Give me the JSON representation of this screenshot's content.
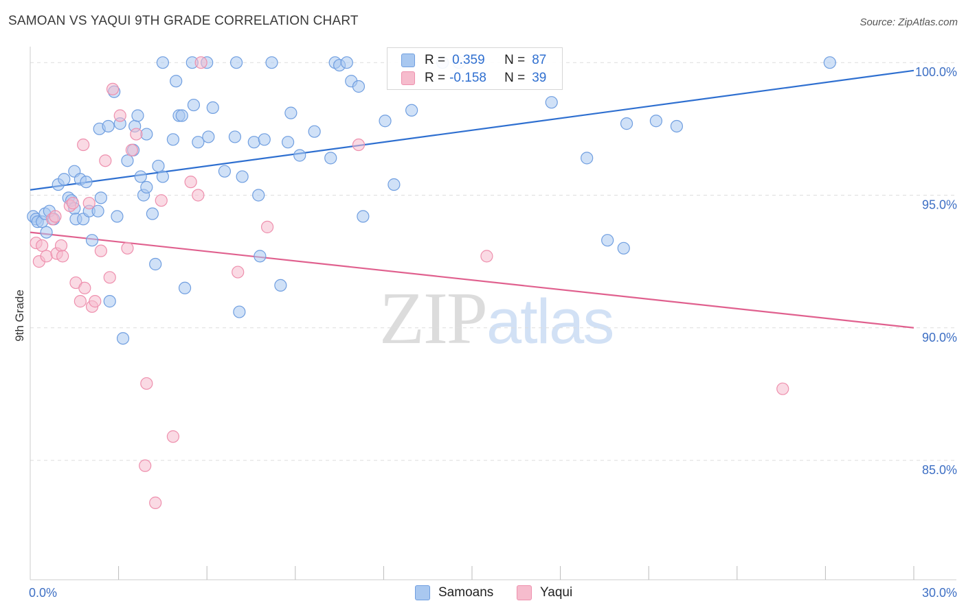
{
  "title": "SAMOAN VS YAQUI 9TH GRADE CORRELATION CHART",
  "source": "Source: ZipAtlas.com",
  "watermark": {
    "zip": "ZIP",
    "atlas": "atlas"
  },
  "colors": {
    "samoans_fill": "#a9c8f0",
    "samoans_stroke": "#6f9ee0",
    "samoans_line": "#2e6fd0",
    "yaqui_fill": "#f6bccd",
    "yaqui_stroke": "#ee8fad",
    "yaqui_line": "#e0608e",
    "tick_label": "#3d6fc4",
    "grid": "#dddddd"
  },
  "stats": {
    "samoans": {
      "r_label": "R =",
      "r_value": "0.359",
      "n_label": "N =",
      "n_value": "87"
    },
    "yaqui": {
      "r_label": "R =",
      "r_value": "-0.158",
      "n_label": "N =",
      "n_value": "39"
    }
  },
  "legend": {
    "samoans": "Samoans",
    "yaqui": "Yaqui"
  },
  "chart_data": {
    "type": "scatter",
    "title": "SAMOAN VS YAQUI 9TH GRADE CORRELATION CHART",
    "xlabel": "",
    "ylabel": "9th Grade",
    "xlim": [
      0,
      30
    ],
    "ylim": [
      80.5,
      100.6
    ],
    "x_tick_labels": [
      {
        "value": 0,
        "label": "0.0%"
      },
      {
        "value": 30,
        "label": "30.0%"
      }
    ],
    "x_minor_ticks": [
      3,
      6,
      9,
      12,
      15,
      18,
      21,
      24,
      27,
      30
    ],
    "y_ticks": [
      {
        "value": 100,
        "label": "100.0%"
      },
      {
        "value": 95,
        "label": "95.0%"
      },
      {
        "value": 90,
        "label": "90.0%"
      },
      {
        "value": 85,
        "label": "85.0%"
      }
    ],
    "series": [
      {
        "name": "Samoans",
        "trend": {
          "x": [
            0,
            30
          ],
          "y": [
            95.2,
            99.7
          ]
        },
        "points": [
          [
            0.1,
            94.2
          ],
          [
            0.2,
            94.1
          ],
          [
            0.25,
            94.0
          ],
          [
            0.4,
            94.0
          ],
          [
            0.5,
            94.3
          ],
          [
            0.55,
            93.6
          ],
          [
            0.65,
            94.4
          ],
          [
            0.8,
            94.1
          ],
          [
            0.95,
            95.4
          ],
          [
            1.15,
            95.6
          ],
          [
            1.3,
            94.9
          ],
          [
            1.4,
            94.8
          ],
          [
            1.5,
            94.5
          ],
          [
            1.5,
            95.9
          ],
          [
            1.55,
            94.1
          ],
          [
            1.7,
            95.6
          ],
          [
            1.8,
            94.1
          ],
          [
            1.9,
            95.5
          ],
          [
            2.0,
            94.4
          ],
          [
            2.1,
            93.3
          ],
          [
            2.3,
            94.4
          ],
          [
            2.4,
            94.9
          ],
          [
            2.35,
            97.5
          ],
          [
            2.65,
            97.6
          ],
          [
            2.7,
            91.0
          ],
          [
            2.85,
            98.9
          ],
          [
            2.95,
            94.2
          ],
          [
            3.05,
            97.7
          ],
          [
            3.15,
            89.6
          ],
          [
            3.3,
            96.3
          ],
          [
            3.5,
            96.7
          ],
          [
            3.55,
            97.6
          ],
          [
            3.65,
            98.0
          ],
          [
            3.75,
            95.7
          ],
          [
            3.85,
            95.0
          ],
          [
            3.95,
            95.3
          ],
          [
            3.95,
            97.3
          ],
          [
            4.15,
            94.3
          ],
          [
            4.25,
            92.4
          ],
          [
            4.35,
            96.1
          ],
          [
            4.5,
            95.7
          ],
          [
            4.5,
            100.0
          ],
          [
            4.85,
            97.1
          ],
          [
            4.95,
            99.3
          ],
          [
            5.05,
            98.0
          ],
          [
            5.15,
            98.0
          ],
          [
            5.25,
            91.5
          ],
          [
            5.5,
            100.0
          ],
          [
            5.55,
            98.4
          ],
          [
            5.7,
            97.0
          ],
          [
            6.0,
            100.0
          ],
          [
            6.05,
            97.2
          ],
          [
            6.2,
            98.3
          ],
          [
            6.6,
            95.9
          ],
          [
            6.95,
            97.2
          ],
          [
            7.0,
            100.0
          ],
          [
            7.1,
            90.6
          ],
          [
            7.2,
            95.7
          ],
          [
            7.6,
            97.0
          ],
          [
            7.75,
            95.0
          ],
          [
            7.8,
            92.7
          ],
          [
            7.95,
            97.1
          ],
          [
            8.2,
            100.0
          ],
          [
            8.5,
            91.6
          ],
          [
            8.75,
            97.0
          ],
          [
            8.85,
            98.1
          ],
          [
            9.15,
            96.5
          ],
          [
            9.65,
            97.4
          ],
          [
            10.2,
            96.4
          ],
          [
            10.35,
            100.0
          ],
          [
            10.5,
            99.9
          ],
          [
            10.75,
            100.0
          ],
          [
            10.9,
            99.3
          ],
          [
            11.15,
            99.1
          ],
          [
            11.3,
            94.2
          ],
          [
            12.05,
            97.8
          ],
          [
            12.35,
            95.4
          ],
          [
            12.95,
            98.2
          ],
          [
            14.0,
            100.0
          ],
          [
            14.55,
            100.0
          ],
          [
            17.7,
            98.5
          ],
          [
            18.9,
            96.4
          ],
          [
            19.6,
            93.3
          ],
          [
            20.15,
            93.0
          ],
          [
            20.25,
            97.7
          ],
          [
            21.25,
            97.8
          ],
          [
            21.95,
            97.6
          ],
          [
            27.15,
            100.0
          ]
        ]
      },
      {
        "name": "Yaqui",
        "trend": {
          "x": [
            0,
            30
          ],
          "y": [
            93.6,
            90.0
          ]
        },
        "points": [
          [
            0.2,
            93.2
          ],
          [
            0.3,
            92.5
          ],
          [
            0.4,
            93.1
          ],
          [
            0.55,
            92.7
          ],
          [
            0.75,
            94.1
          ],
          [
            0.85,
            94.2
          ],
          [
            0.9,
            92.8
          ],
          [
            1.05,
            93.1
          ],
          [
            1.1,
            92.7
          ],
          [
            1.35,
            94.6
          ],
          [
            1.45,
            94.7
          ],
          [
            1.55,
            91.7
          ],
          [
            1.7,
            91.0
          ],
          [
            1.8,
            96.9
          ],
          [
            1.85,
            91.5
          ],
          [
            2.0,
            94.7
          ],
          [
            2.1,
            90.8
          ],
          [
            2.2,
            91.0
          ],
          [
            2.4,
            92.9
          ],
          [
            2.55,
            96.3
          ],
          [
            2.7,
            91.9
          ],
          [
            2.8,
            99.0
          ],
          [
            3.05,
            98.0
          ],
          [
            3.3,
            93.0
          ],
          [
            3.45,
            96.7
          ],
          [
            3.6,
            97.3
          ],
          [
            3.9,
            84.8
          ],
          [
            3.95,
            87.9
          ],
          [
            4.25,
            83.4
          ],
          [
            4.45,
            94.8
          ],
          [
            4.85,
            85.9
          ],
          [
            5.45,
            95.5
          ],
          [
            5.7,
            95.0
          ],
          [
            5.8,
            100.0
          ],
          [
            7.05,
            92.1
          ],
          [
            8.05,
            93.8
          ],
          [
            11.15,
            96.9
          ],
          [
            15.5,
            92.7
          ],
          [
            25.55,
            87.7
          ]
        ]
      }
    ]
  }
}
